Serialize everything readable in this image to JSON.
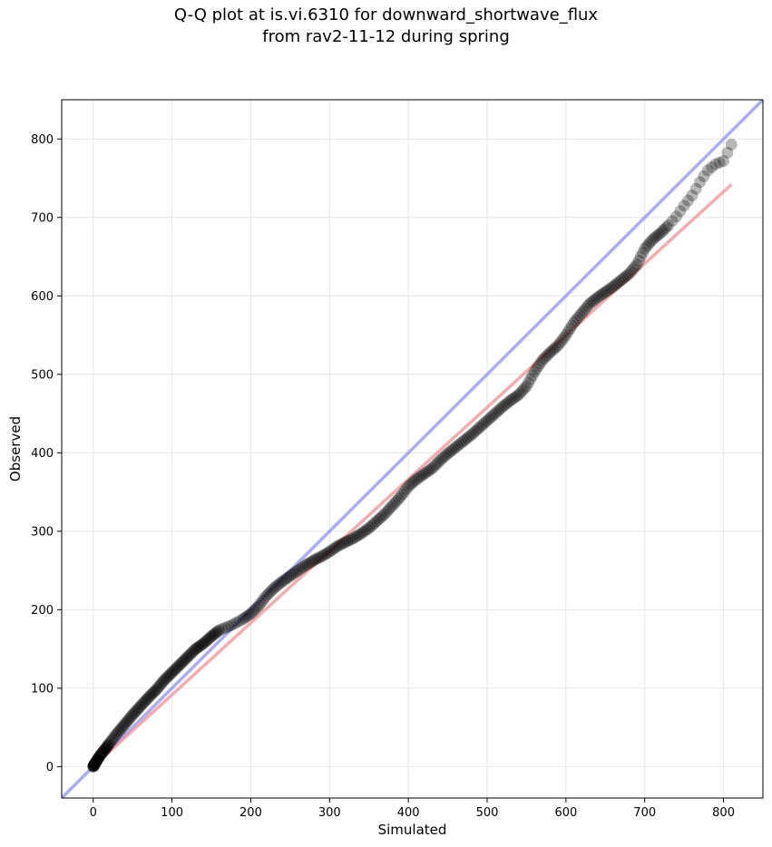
{
  "chart_data": {
    "type": "scatter",
    "title_line1": "Q-Q plot at is.vi.6310 for downward_shortwave_flux",
    "title_line2": "from rav2-11-12 during spring",
    "xlabel": "Simulated",
    "ylabel": "Observed",
    "xlim": [
      -40,
      850
    ],
    "ylim": [
      -40,
      850
    ],
    "xticks": [
      0,
      100,
      200,
      300,
      400,
      500,
      600,
      700,
      800
    ],
    "yticks": [
      0,
      100,
      200,
      300,
      400,
      500,
      600,
      700,
      800
    ],
    "grid": true,
    "reference_line": {
      "name": "1:1",
      "color": "#8080f0",
      "from": [
        -40,
        -40
      ],
      "to": [
        850,
        850
      ]
    },
    "fit_line": {
      "color": "#f08a8a",
      "from": [
        0,
        0
      ],
      "to": [
        810,
        742
      ]
    },
    "point_color": "#000000",
    "quantile_curve": [
      [
        0,
        0
      ],
      [
        1,
        2
      ],
      [
        3,
        5
      ],
      [
        6,
        10
      ],
      [
        10,
        16
      ],
      [
        15,
        22
      ],
      [
        20,
        29
      ],
      [
        30,
        42
      ],
      [
        40,
        54
      ],
      [
        50,
        66
      ],
      [
        60,
        77
      ],
      [
        70,
        88
      ],
      [
        80,
        98
      ],
      [
        90,
        110
      ],
      [
        100,
        120
      ],
      [
        110,
        130
      ],
      [
        120,
        140
      ],
      [
        130,
        150
      ],
      [
        140,
        157
      ],
      [
        150,
        166
      ],
      [
        160,
        174
      ],
      [
        175,
        180
      ],
      [
        190,
        188
      ],
      [
        200,
        195
      ],
      [
        210,
        205
      ],
      [
        220,
        218
      ],
      [
        230,
        228
      ],
      [
        240,
        236
      ],
      [
        250,
        243
      ],
      [
        260,
        250
      ],
      [
        270,
        257
      ],
      [
        280,
        263
      ],
      [
        290,
        268
      ],
      [
        300,
        274
      ],
      [
        310,
        281
      ],
      [
        320,
        286
      ],
      [
        330,
        291
      ],
      [
        340,
        297
      ],
      [
        350,
        304
      ],
      [
        360,
        313
      ],
      [
        370,
        322
      ],
      [
        380,
        333
      ],
      [
        390,
        344
      ],
      [
        400,
        357
      ],
      [
        410,
        366
      ],
      [
        420,
        373
      ],
      [
        430,
        380
      ],
      [
        440,
        390
      ],
      [
        450,
        399
      ],
      [
        460,
        407
      ],
      [
        470,
        415
      ],
      [
        480,
        423
      ],
      [
        490,
        432
      ],
      [
        500,
        441
      ],
      [
        510,
        450
      ],
      [
        520,
        459
      ],
      [
        530,
        467
      ],
      [
        540,
        474
      ],
      [
        550,
        485
      ],
      [
        560,
        503
      ],
      [
        570,
        518
      ],
      [
        580,
        528
      ],
      [
        590,
        537
      ],
      [
        600,
        550
      ],
      [
        610,
        566
      ],
      [
        620,
        578
      ],
      [
        630,
        590
      ],
      [
        640,
        598
      ],
      [
        650,
        605
      ],
      [
        660,
        612
      ],
      [
        670,
        620
      ],
      [
        680,
        628
      ],
      [
        690,
        640
      ],
      [
        700,
        660
      ],
      [
        710,
        672
      ],
      [
        720,
        680
      ],
      [
        730,
        690
      ],
      [
        740,
        701
      ],
      [
        750,
        715
      ],
      [
        760,
        728
      ],
      [
        770,
        745
      ],
      [
        780,
        760
      ],
      [
        790,
        768
      ],
      [
        800,
        772
      ],
      [
        810,
        793
      ]
    ]
  }
}
